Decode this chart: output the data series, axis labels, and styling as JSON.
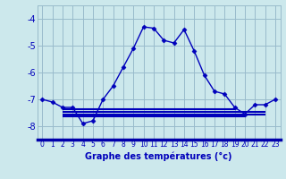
{
  "xlabel": "Graphe des températures (°c)",
  "background_color": "#cce8ec",
  "line_color": "#0000bb",
  "grid_color": "#99bbcc",
  "axis_bar_color": "#0000aa",
  "xlim": [
    -0.5,
    23.5
  ],
  "ylim": [
    -8.5,
    -3.5
  ],
  "yticks": [
    -8,
    -7,
    -6,
    -5,
    -4
  ],
  "xticks": [
    0,
    1,
    2,
    3,
    4,
    5,
    6,
    7,
    8,
    9,
    10,
    11,
    12,
    13,
    14,
    15,
    16,
    17,
    18,
    19,
    20,
    21,
    22,
    23
  ],
  "main_series": {
    "x": [
      0,
      1,
      2,
      3,
      4,
      5,
      6,
      7,
      8,
      9,
      10,
      11,
      12,
      13,
      14,
      15,
      16,
      17,
      18,
      19,
      20,
      21,
      22,
      23
    ],
    "y": [
      -7.0,
      -7.1,
      -7.3,
      -7.3,
      -7.9,
      -7.8,
      -7.0,
      -6.5,
      -5.8,
      -5.1,
      -4.3,
      -4.35,
      -4.8,
      -4.9,
      -4.4,
      -5.2,
      -6.1,
      -6.7,
      -6.8,
      -7.3,
      -7.55,
      -7.2,
      -7.2,
      -7.0
    ]
  },
  "flat_lines": [
    {
      "x": [
        2,
        19
      ],
      "y": [
        -7.35,
        -7.35
      ]
    },
    {
      "x": [
        2,
        22
      ],
      "y": [
        -7.45,
        -7.45
      ]
    },
    {
      "x": [
        2,
        22
      ],
      "y": [
        -7.55,
        -7.55
      ]
    },
    {
      "x": [
        2,
        20
      ],
      "y": [
        -7.62,
        -7.62
      ]
    }
  ],
  "xlabel_fontsize": 7,
  "ytick_fontsize": 7,
  "xtick_fontsize": 5.5
}
